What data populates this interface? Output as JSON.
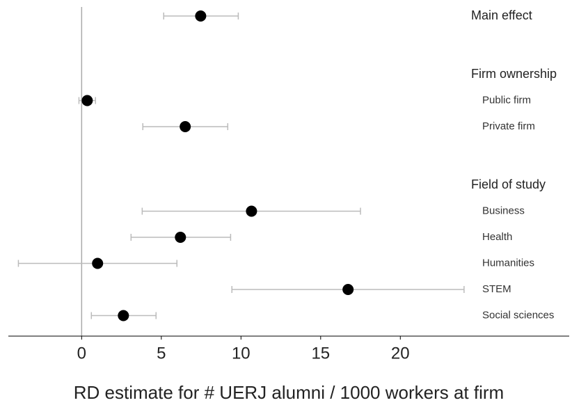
{
  "chart_data": {
    "type": "coefplot",
    "xlabel": "RD estimate for # UERJ alumni / 1000 workers at firm",
    "xlim": [
      -4.6,
      30.6
    ],
    "xticks": [
      0,
      5,
      10,
      15,
      20
    ],
    "zero_line": 0,
    "point_color": "#000000",
    "ci_color": "#bbbbbb",
    "groups": [
      {
        "name": "Main effect",
        "value": 7.47,
        "lower": 5.15,
        "upper": 9.83
      },
      {
        "name": "Firm ownership",
        "items": [
          {
            "name": "Public firm",
            "value": 0.35,
            "lower": -0.17,
            "upper": 0.87
          },
          {
            "name": "Private firm",
            "value": 6.5,
            "lower": 3.84,
            "upper": 9.17
          }
        ]
      },
      {
        "name": "Field of study",
        "items": [
          {
            "name": "Business",
            "value": 10.66,
            "lower": 3.8,
            "upper": 17.5
          },
          {
            "name": "Health",
            "value": 6.2,
            "lower": 3.1,
            "upper": 9.35
          },
          {
            "name": "Humanities",
            "value": 1.0,
            "lower": -3.97,
            "upper": 5.98
          },
          {
            "name": "STEM",
            "value": 16.72,
            "lower": 9.43,
            "upper": 24.0
          },
          {
            "name": "Social sciences",
            "value": 2.62,
            "lower": 0.61,
            "upper": 4.67
          }
        ]
      }
    ]
  }
}
